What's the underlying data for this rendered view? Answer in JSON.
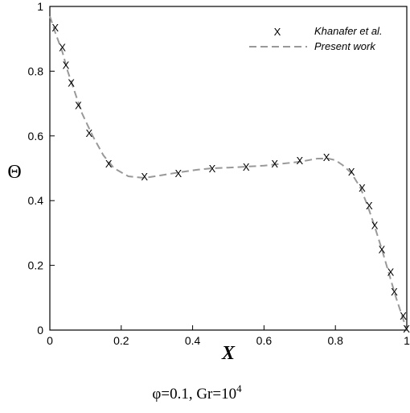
{
  "chart_data": {
    "type": "line",
    "xlabel": "X",
    "ylabel": "Θ",
    "xlim": [
      0,
      1
    ],
    "ylim": [
      0,
      1
    ],
    "x_ticks": [
      "0",
      "0.2",
      "0.4",
      "0.6",
      "0.8",
      "1"
    ],
    "y_ticks": [
      "0",
      "0.2",
      "0.4",
      "0.6",
      "0.8",
      "1"
    ],
    "legend_position": "top-right",
    "series": [
      {
        "name": "Khanafer et al.",
        "style": "markers",
        "marker": "X",
        "color": "#000000",
        "x": [
          0.015,
          0.035,
          0.045,
          0.06,
          0.08,
          0.11,
          0.165,
          0.265,
          0.36,
          0.455,
          0.55,
          0.63,
          0.7,
          0.775,
          0.845,
          0.875,
          0.895,
          0.91,
          0.93,
          0.955,
          0.965,
          0.99,
          0.999
        ],
        "y": [
          0.935,
          0.875,
          0.82,
          0.765,
          0.695,
          0.61,
          0.515,
          0.475,
          0.485,
          0.5,
          0.505,
          0.515,
          0.525,
          0.535,
          0.49,
          0.44,
          0.385,
          0.325,
          0.25,
          0.18,
          0.12,
          0.045,
          0.005
        ]
      },
      {
        "name": "Present work",
        "style": "dashed",
        "color": "#999999",
        "x": [
          0.0,
          0.015,
          0.035,
          0.05,
          0.07,
          0.09,
          0.12,
          0.15,
          0.18,
          0.22,
          0.265,
          0.31,
          0.36,
          0.41,
          0.455,
          0.5,
          0.55,
          0.6,
          0.65,
          0.7,
          0.75,
          0.78,
          0.8,
          0.82,
          0.845,
          0.87,
          0.89,
          0.91,
          0.93,
          0.95,
          0.97,
          0.985,
          1.0
        ],
        "y": [
          0.97,
          0.92,
          0.86,
          0.8,
          0.735,
          0.67,
          0.6,
          0.54,
          0.5,
          0.475,
          0.47,
          0.478,
          0.487,
          0.495,
          0.5,
          0.502,
          0.505,
          0.508,
          0.514,
          0.52,
          0.53,
          0.53,
          0.525,
          0.51,
          0.485,
          0.44,
          0.385,
          0.32,
          0.25,
          0.175,
          0.1,
          0.05,
          0.0
        ]
      }
    ]
  },
  "caption": {
    "prefix": "φ=0.1, Gr=10",
    "exponent": "4"
  }
}
